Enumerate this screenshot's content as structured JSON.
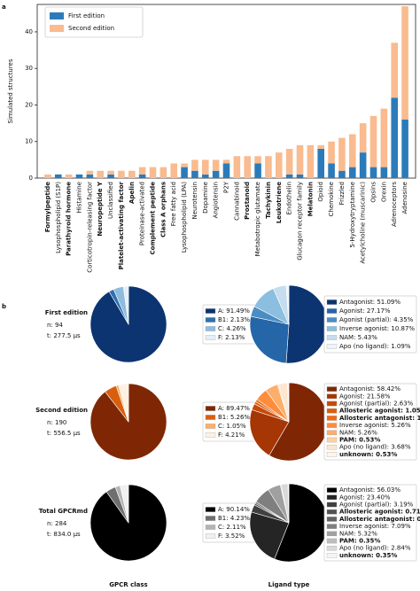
{
  "panel_labels": [
    "a",
    "b"
  ],
  "rows": [
    {
      "title": "First edition",
      "n": "n: 94",
      "t": "t: 277.5 µs"
    },
    {
      "title": "Second edition",
      "n": "n: 190",
      "t": "t: 556.5 µs"
    },
    {
      "title": "Total GPCRmd",
      "n": "n: 284",
      "t": "t: 834.0 µs"
    }
  ],
  "column_titles": [
    "GPCR class",
    "Ligand type"
  ],
  "chart_data": [
    {
      "type": "bar",
      "stacked": true,
      "ylabel": "Simulated structures",
      "categories": [
        "Formylpeptide",
        "Lysophospholipid (S1P)",
        "Parathyroid hormone",
        "Histamine",
        "Corticotropin-releasing factor",
        "Neuropeptide Y",
        "Unclassified",
        "Platelet-activating factor",
        "Apelin",
        "Proteinase-activated",
        "Complement peptide",
        "Class A orphans",
        "Free fatty acid",
        "Lysophospholipid (LPA)",
        "Neurotensin",
        "Dopamine",
        "Angiotensin",
        "P2Y",
        "Cannabinoid",
        "Prostanoid",
        "Metabotropic glutamate",
        "Tachykinin",
        "Leukotriene",
        "Endothelin",
        "Glucagon receptor family",
        "Melatonin",
        "Opioid",
        "Chemokine",
        "Frizzled",
        "5-Hydroxytryptamine",
        "Acetylcholine (muscarinic)",
        "Opsins",
        "Orexin",
        "Adrenoceptors",
        "Adenosine"
      ],
      "bold_categories": [
        true,
        false,
        true,
        false,
        false,
        true,
        false,
        true,
        true,
        false,
        true,
        true,
        false,
        false,
        false,
        false,
        false,
        false,
        false,
        true,
        false,
        true,
        true,
        false,
        false,
        true,
        false,
        false,
        false,
        false,
        false,
        false,
        false,
        false,
        false
      ],
      "series": [
        {
          "name": "First edition",
          "color": "#2b7bba",
          "values": [
            0,
            1,
            0,
            1,
            1,
            0,
            1,
            0,
            0,
            1,
            0,
            0,
            0,
            3,
            2,
            1,
            2,
            4,
            0,
            0,
            4,
            0,
            0,
            1,
            1,
            0,
            8,
            4,
            2,
            3,
            7,
            3,
            3,
            22,
            16
          ]
        },
        {
          "name": "Second edition",
          "color": "#f9bb8f",
          "values": [
            1,
            0,
            1,
            0,
            1,
            2,
            1,
            2,
            2,
            2,
            3,
            3,
            4,
            1,
            3,
            4,
            3,
            1,
            6,
            6,
            2,
            6,
            7,
            7,
            8,
            9,
            1,
            6,
            9,
            9,
            8,
            14,
            16,
            15,
            31
          ]
        }
      ],
      "ylim": [
        0,
        47.5
      ],
      "yticks": [
        0,
        10,
        20,
        30,
        40
      ],
      "legend": "upper left"
    },
    {
      "type": "pie",
      "labels": [
        "A: 91.49%",
        "B1: 2.13%",
        "C: 4.26%",
        "F: 2.13%"
      ],
      "values": [
        91.49,
        2.13,
        4.26,
        2.13
      ],
      "bold": [
        false,
        false,
        false,
        false
      ],
      "colors": [
        "#0b3471",
        "#2f70b0",
        "#8fbcde",
        "#e4eff9"
      ]
    },
    {
      "type": "pie",
      "labels": [
        "Antagonist: 51.09%",
        "Agonist: 27.17%",
        "Agonist (partial): 4.35%",
        "Inverse agonist: 10.87%",
        "NAM: 5.43%",
        "Apo (no ligand): 1.09%"
      ],
      "values": [
        51.09,
        27.17,
        4.35,
        10.87,
        5.43,
        1.09
      ],
      "bold": [
        false,
        false,
        false,
        false,
        false,
        false
      ],
      "colors": [
        "#0b3471",
        "#2466a8",
        "#4a8dc5",
        "#8bbedf",
        "#c6dcef",
        "#eff5fc"
      ]
    },
    {
      "type": "pie",
      "labels": [
        "A: 89.47%",
        "B1: 5.26%",
        "C: 1.05%",
        "F: 4.21%"
      ],
      "values": [
        89.47,
        5.26,
        1.05,
        4.21
      ],
      "bold": [
        false,
        false,
        false,
        false
      ],
      "colors": [
        "#7f2704",
        "#d95f0e",
        "#fdae6b",
        "#fff1e2"
      ]
    },
    {
      "type": "pie",
      "labels": [
        "Antagonist: 58.42%",
        "Agonist: 21.58%",
        "Agonist (partial): 2.63%",
        "Allosteric agonist: 1.05%",
        "Allosteric antagonist: 1.05%",
        "Inverse agonist: 5.26%",
        "NAM: 5.26%",
        "PAM: 0.53%",
        "Apo (no ligand): 3.68%",
        "unknown: 0.53%"
      ],
      "values": [
        58.42,
        21.58,
        2.63,
        1.05,
        1.05,
        5.26,
        5.26,
        0.53,
        3.68,
        0.53
      ],
      "bold": [
        false,
        false,
        false,
        true,
        true,
        false,
        false,
        true,
        false,
        true
      ],
      "colors": [
        "#7f2704",
        "#a63603",
        "#c84a09",
        "#d95f0e",
        "#f16913",
        "#fd8d3c",
        "#fdae6b",
        "#fdd0a2",
        "#fee6ce",
        "#fff5eb"
      ]
    },
    {
      "type": "pie",
      "labels": [
        "A: 90.14%",
        "B1: 4.23%",
        "C: 2.11%",
        "F: 3.52%"
      ],
      "values": [
        90.14,
        4.23,
        2.11,
        3.52
      ],
      "bold": [
        false,
        false,
        false,
        false
      ],
      "colors": [
        "#000000",
        "#6e6e6e",
        "#b4b4b4",
        "#f0f0f0"
      ]
    },
    {
      "type": "pie",
      "labels": [
        "Antagonist: 56.03%",
        "Agonist: 23.40%",
        "Agonist (partial): 3.19%",
        "Allosteric agonist: 0.71%",
        "Allosteric antagonist: 0.71%",
        "Inverse agonist: 7.09%",
        "NAM: 5.32%",
        "PAM: 0.35%",
        "Apo (no ligand): 2.84%",
        "unknown: 0.35%"
      ],
      "values": [
        56.03,
        23.4,
        3.19,
        0.71,
        0.71,
        7.09,
        5.32,
        0.35,
        2.84,
        0.35
      ],
      "bold": [
        false,
        false,
        false,
        true,
        true,
        false,
        false,
        true,
        false,
        true
      ],
      "colors": [
        "#000000",
        "#252525",
        "#404040",
        "#525252",
        "#636363",
        "#7f7f7f",
        "#a0a0a0",
        "#bdbdbd",
        "#d9d9d9",
        "#f5f5f5"
      ]
    }
  ]
}
